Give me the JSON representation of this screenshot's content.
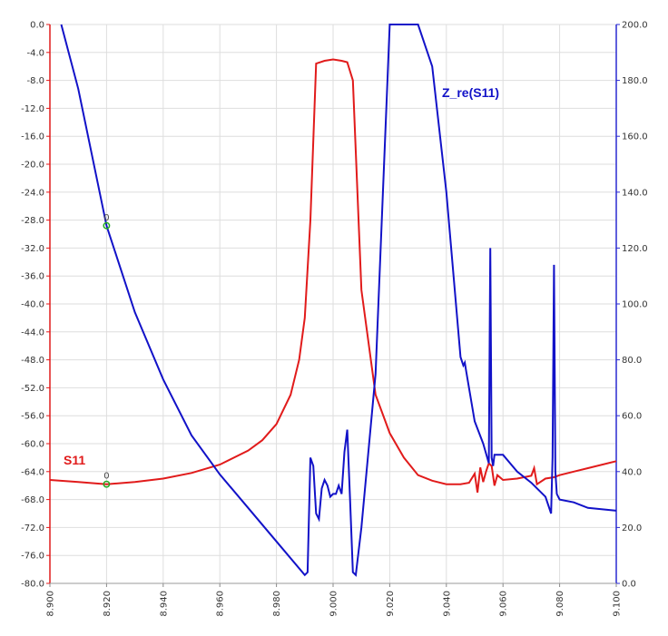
{
  "chart_data": {
    "type": "line",
    "x_range": [
      8.9,
      9.1
    ],
    "x_ticks": [
      "8.900",
      "8.920",
      "8.940",
      "8.960",
      "8.980",
      "9.000",
      "9.020",
      "9.040",
      "9.060",
      "9.080",
      "9.100"
    ],
    "y_left_range": [
      -80,
      0
    ],
    "y_left_ticks": [
      "0.0",
      "-4.0",
      "-8.0",
      "-12.0",
      "-16.0",
      "-20.0",
      "-24.0",
      "-28.0",
      "-32.0",
      "-36.0",
      "-40.0",
      "-44.0",
      "-48.0",
      "-52.0",
      "-56.0",
      "-60.0",
      "-64.0",
      "-68.0",
      "-72.0",
      "-76.0",
      "-80.0"
    ],
    "y_right_range": [
      0,
      200
    ],
    "y_right_ticks": [
      "200.0",
      "180.0",
      "160.0",
      "140.0",
      "120.0",
      "100.0",
      "80.0",
      "60.0",
      "40.0",
      "20.0",
      "0.0"
    ],
    "grid": true,
    "colors": {
      "s11": "#e11b1b",
      "zre": "#1212c8",
      "left_axis": "#e11b1b",
      "right_axis": "#2a2ad0",
      "grid": "#dedede",
      "marker": "#22aa22"
    },
    "series": [
      {
        "name": "S11",
        "axis": "left",
        "color": "#e11b1b",
        "x": [
          8.9,
          8.91,
          8.92,
          8.93,
          8.94,
          8.95,
          8.96,
          8.97,
          8.975,
          8.98,
          8.985,
          8.988,
          8.99,
          8.992,
          8.994,
          8.997,
          9.0,
          9.003,
          9.005,
          9.007,
          9.01,
          9.015,
          9.02,
          9.025,
          9.03,
          9.035,
          9.04,
          9.045,
          9.048,
          9.05,
          9.051,
          9.052,
          9.053,
          9.054,
          9.055,
          9.056,
          9.057,
          9.058,
          9.06,
          9.065,
          9.07,
          9.071,
          9.072,
          9.075,
          9.078,
          9.08,
          9.085,
          9.09,
          9.1
        ],
        "y": [
          -65.2,
          -65.5,
          -65.8,
          -65.5,
          -65,
          -64.2,
          -63,
          -61,
          -59.5,
          -57.2,
          -53,
          -48,
          -42,
          -28,
          -5.6,
          -5.2,
          -5.0,
          -5.2,
          -5.4,
          -8,
          -38,
          -53,
          -58.5,
          -62,
          -64.5,
          -65.3,
          -65.8,
          -65.8,
          -65.6,
          -64.3,
          -67,
          -63.4,
          -65.5,
          -64,
          -62.8,
          -63.2,
          -66,
          -64.5,
          -65.2,
          -65,
          -64.6,
          -63.5,
          -65.8,
          -65,
          -64.8,
          -64.5,
          -64,
          -63.5,
          -62.5
        ]
      },
      {
        "name": "Z_re(S11)",
        "axis": "right",
        "color": "#1212c8",
        "x": [
          8.904,
          8.91,
          8.92,
          8.93,
          8.94,
          8.95,
          8.96,
          8.97,
          8.98,
          8.99,
          8.991,
          8.992,
          8.993,
          8.994,
          8.995,
          8.996,
          8.997,
          8.998,
          8.999,
          9.0,
          9.001,
          9.002,
          9.003,
          9.004,
          9.005,
          9.006,
          9.007,
          9.008,
          9.01,
          9.015,
          9.02,
          9.025,
          9.03,
          9.035,
          9.04,
          9.045,
          9.046,
          9.0465,
          9.047,
          9.05,
          9.053,
          9.055,
          9.0555,
          9.056,
          9.0565,
          9.057,
          9.06,
          9.065,
          9.07,
          9.075,
          9.077,
          9.0775,
          9.078,
          9.0785,
          9.079,
          9.08,
          9.085,
          9.09,
          9.1
        ],
        "y": [
          200,
          177,
          128,
          97,
          73,
          53,
          39,
          27,
          15,
          3,
          4,
          45,
          42,
          25,
          23,
          34,
          37,
          35,
          31,
          32,
          32,
          35,
          32,
          47,
          55,
          30,
          4,
          3,
          20,
          75,
          200,
          200,
          200,
          185,
          140,
          81,
          78,
          79,
          76,
          58,
          50,
          43,
          120,
          45,
          42,
          46,
          46,
          40,
          36,
          31,
          25,
          45,
          114,
          40,
          32,
          30,
          29,
          27,
          26
        ]
      }
    ],
    "labels": {
      "left_series": "S11",
      "right_series": "Z_re(S11)",
      "marker_text": "0"
    },
    "markers": [
      {
        "series": "Z_re(S11)",
        "x": 8.92,
        "y": 128.0,
        "label": "0"
      },
      {
        "series": "S11",
        "x": 8.92,
        "y": -65.8,
        "label": "0"
      }
    ]
  }
}
